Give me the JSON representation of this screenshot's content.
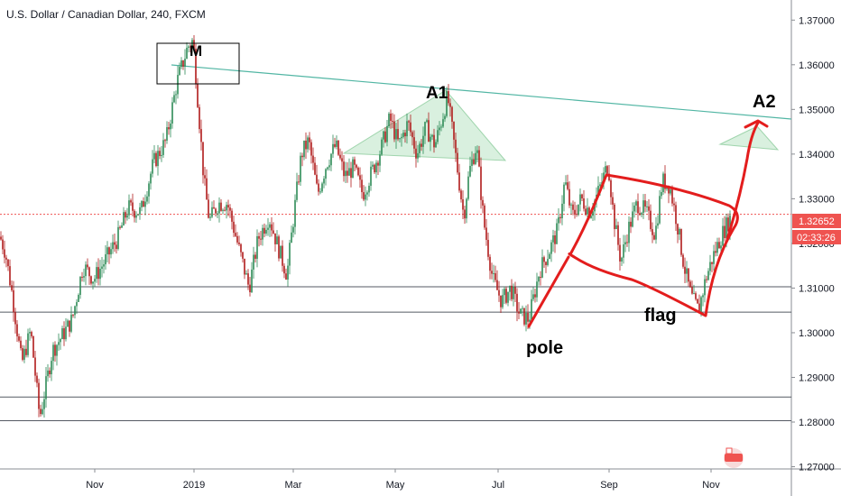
{
  "chart_data": {
    "type": "candlestick",
    "title": "U.S. Dollar / Canadian Dollar, 240, FXCM",
    "ylim": [
      1.2695,
      1.3745
    ],
    "yticks": [
      1.27,
      1.28,
      1.29,
      1.3,
      1.31,
      1.32,
      1.33,
      1.34,
      1.35,
      1.36,
      1.37
    ],
    "ytick_labels": [
      "1.27000",
      "1.28000",
      "1.29000",
      "1.30000",
      "1.31000",
      "1.32000",
      "1.33000",
      "1.34000",
      "1.35000",
      "1.36000",
      "1.37000"
    ],
    "xtick_labels": [
      "Nov",
      "2019",
      "Mar",
      "May",
      "Jul",
      "Sep",
      "Nov"
    ],
    "current_price": "1.32652",
    "countdown": "02:33:26",
    "price_path": [
      [
        0,
        1.3215
      ],
      [
        6,
        1.318
      ],
      [
        14,
        1.308
      ],
      [
        24,
        1.293
      ],
      [
        34,
        1.3005
      ],
      [
        44,
        1.281
      ],
      [
        48,
        1.285
      ],
      [
        58,
        1.296
      ],
      [
        68,
        1.299
      ],
      [
        80,
        1.303
      ],
      [
        92,
        1.315
      ],
      [
        104,
        1.312
      ],
      [
        116,
        1.316
      ],
      [
        130,
        1.321
      ],
      [
        142,
        1.328
      ],
      [
        156,
        1.327
      ],
      [
        170,
        1.338
      ],
      [
        184,
        1.343
      ],
      [
        196,
        1.356
      ],
      [
        208,
        1.364
      ],
      [
        214,
        1.3655
      ],
      [
        220,
        1.35
      ],
      [
        226,
        1.334
      ],
      [
        232,
        1.325
      ],
      [
        242,
        1.329
      ],
      [
        252,
        1.329
      ],
      [
        262,
        1.321
      ],
      [
        276,
        1.31
      ],
      [
        286,
        1.321
      ],
      [
        298,
        1.326
      ],
      [
        310,
        1.318
      ],
      [
        318,
        1.313
      ],
      [
        326,
        1.327
      ],
      [
        334,
        1.34
      ],
      [
        342,
        1.343
      ],
      [
        352,
        1.331
      ],
      [
        362,
        1.338
      ],
      [
        372,
        1.342
      ],
      [
        382,
        1.335
      ],
      [
        392,
        1.337
      ],
      [
        402,
        1.331
      ],
      [
        412,
        1.336
      ],
      [
        422,
        1.341
      ],
      [
        432,
        1.348
      ],
      [
        442,
        1.342
      ],
      [
        452,
        1.347
      ],
      [
        462,
        1.34
      ],
      [
        472,
        1.346
      ],
      [
        482,
        1.342
      ],
      [
        490,
        1.348
      ],
      [
        496,
        1.353
      ],
      [
        502,
        1.344
      ],
      [
        508,
        1.335
      ],
      [
        514,
        1.326
      ],
      [
        520,
        1.336
      ],
      [
        528,
        1.342
      ],
      [
        536,
        1.325
      ],
      [
        546,
        1.312
      ],
      [
        556,
        1.307
      ],
      [
        566,
        1.31
      ],
      [
        576,
        1.304
      ],
      [
        586,
        1.303
      ],
      [
        598,
        1.314
      ],
      [
        608,
        1.318
      ],
      [
        618,
        1.323
      ],
      [
        626,
        1.334
      ],
      [
        634,
        1.326
      ],
      [
        644,
        1.33
      ],
      [
        654,
        1.327
      ],
      [
        664,
        1.332
      ],
      [
        674,
        1.338
      ],
      [
        680,
        1.326
      ],
      [
        688,
        1.316
      ],
      [
        696,
        1.323
      ],
      [
        706,
        1.329
      ],
      [
        716,
        1.327
      ],
      [
        726,
        1.322
      ],
      [
        734,
        1.334
      ],
      [
        742,
        1.333
      ],
      [
        750,
        1.325
      ],
      [
        758,
        1.315
      ],
      [
        766,
        1.308
      ],
      [
        774,
        1.305
      ],
      [
        782,
        1.312
      ],
      [
        790,
        1.317
      ],
      [
        800,
        1.322
      ],
      [
        810,
        1.326
      ]
    ],
    "horizontal_levels": [
      1.3103,
      1.3046,
      1.2856,
      1.2803
    ],
    "current_price_level": 1.32652,
    "annotations": [
      "M",
      "A1",
      "A2",
      "pole",
      "flag"
    ]
  }
}
